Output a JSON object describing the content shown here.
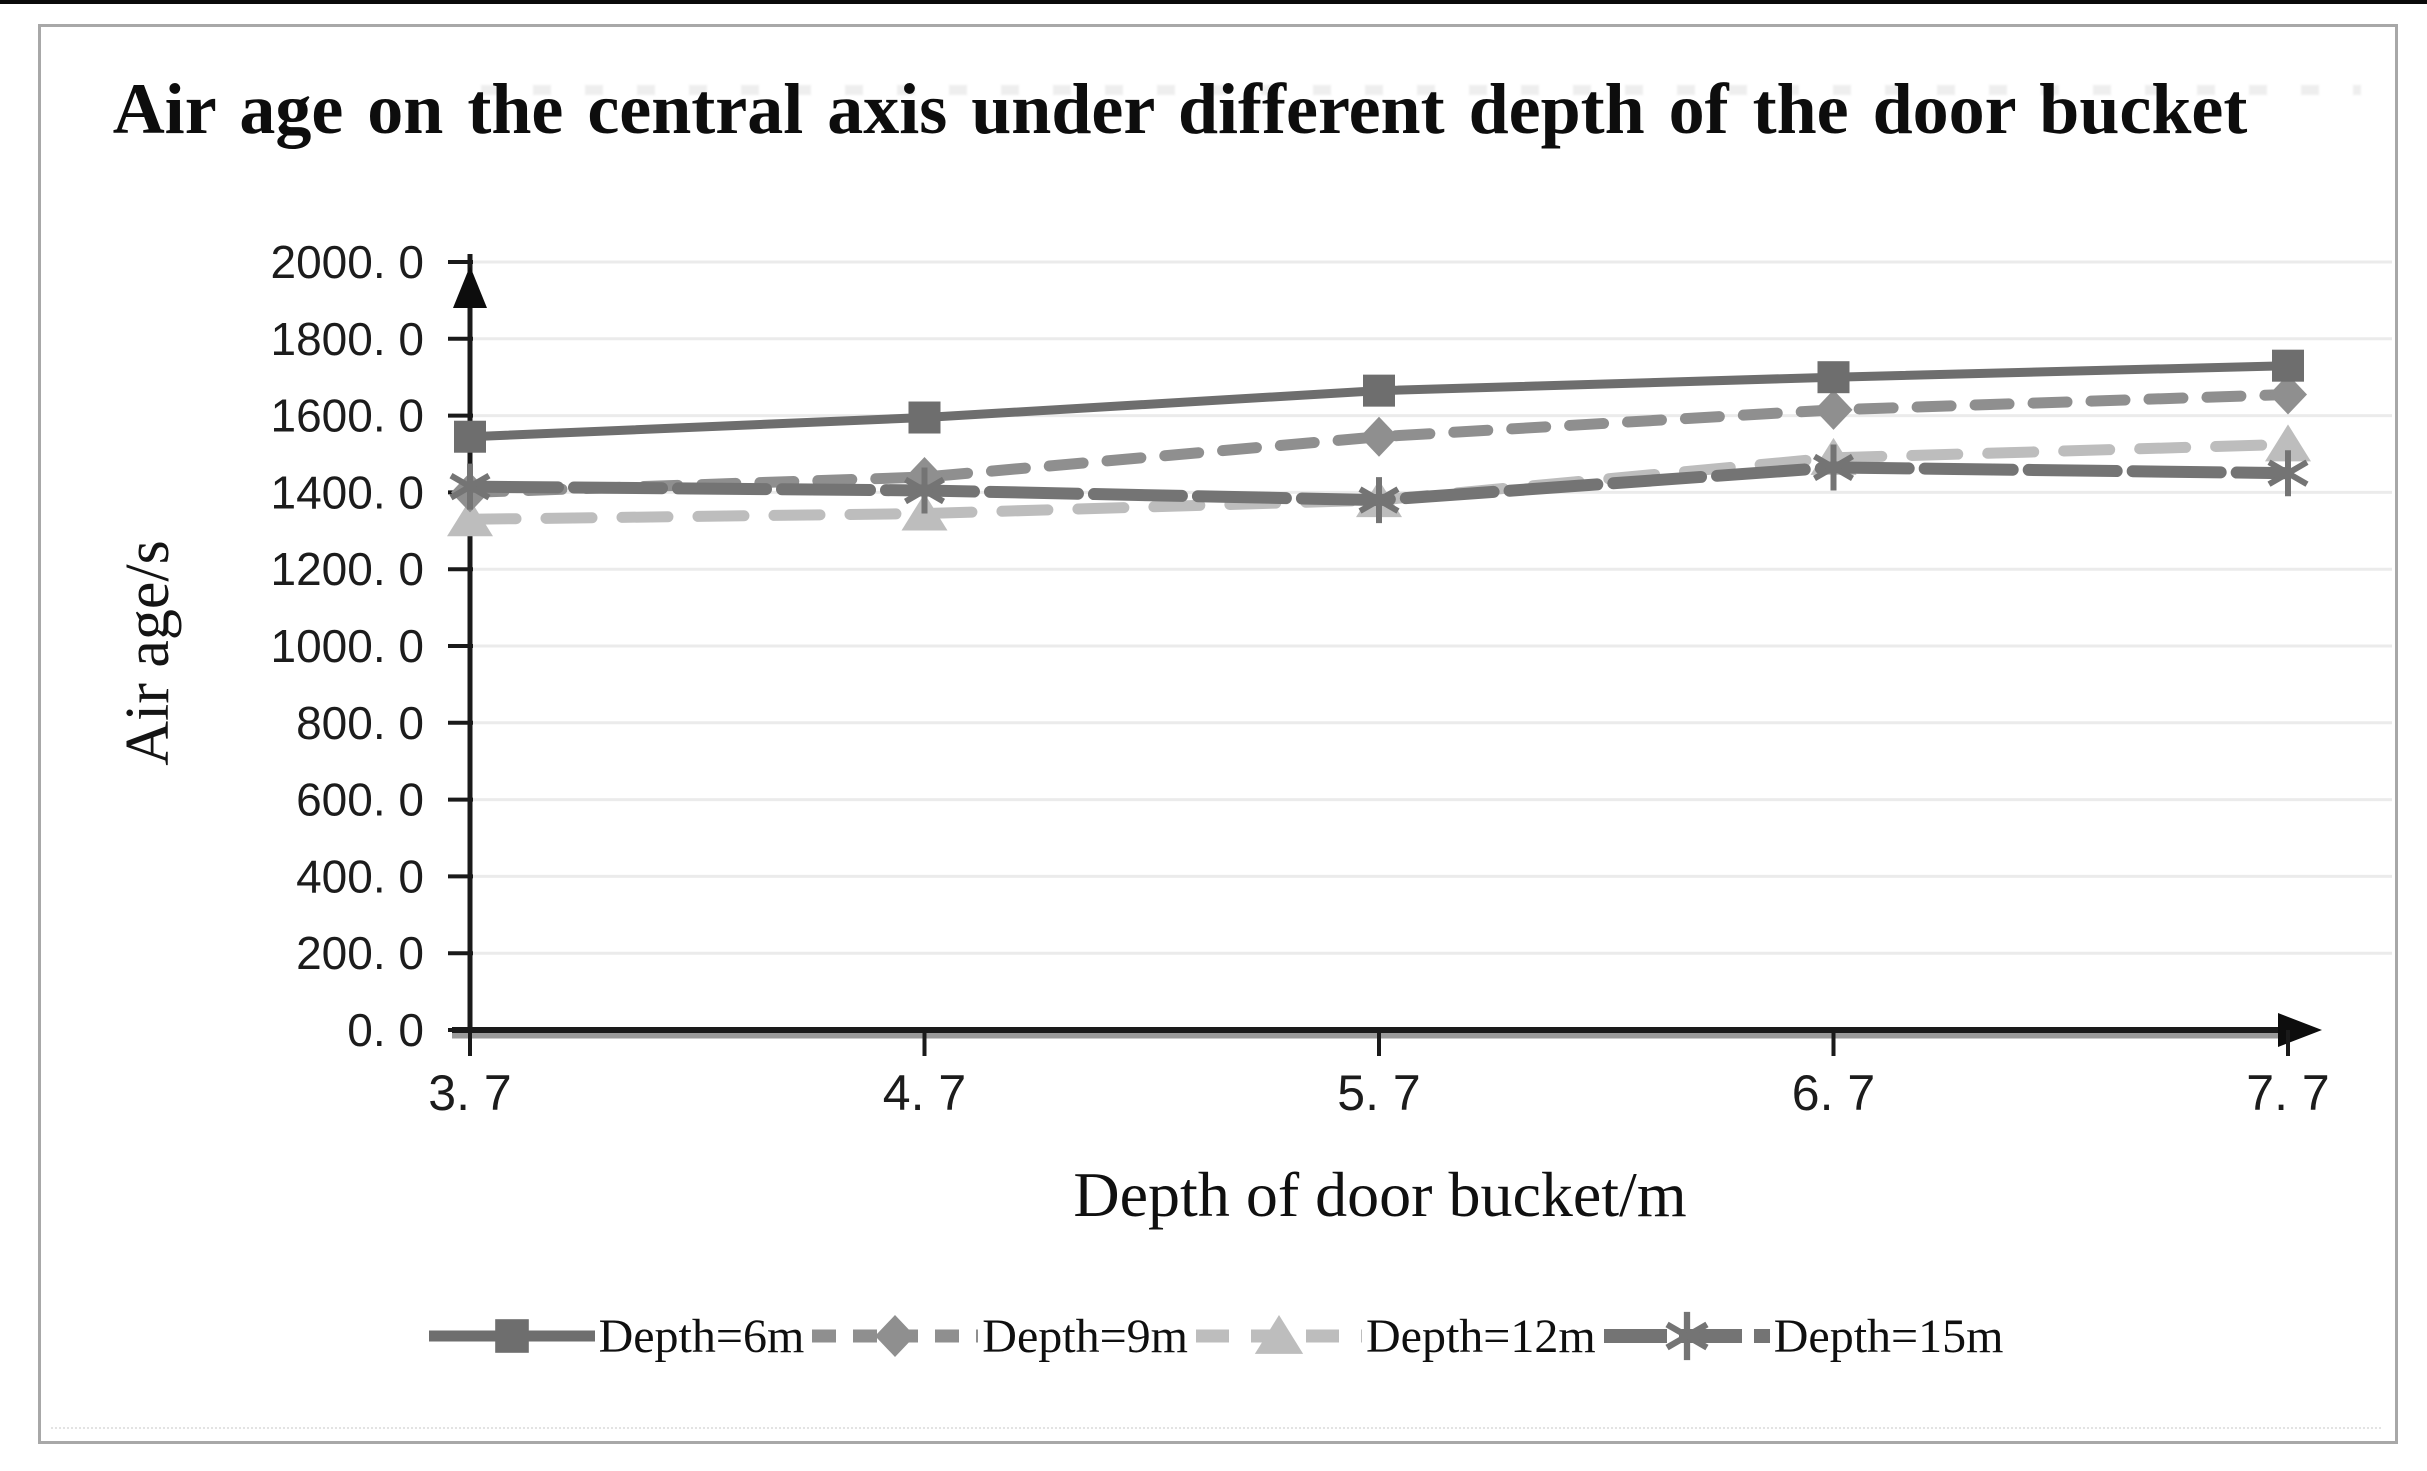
{
  "page": {
    "background": "#ffffff",
    "frame_border_color": "#a8a8a8",
    "axis_color": "#1a1a1a",
    "gridline_color": "#ebebeb"
  },
  "chart_data": {
    "type": "line",
    "title": "Air age on the central axis under different depth of the door bucket",
    "xlabel": "Depth of door bucket/m",
    "ylabel": "Air age/s",
    "x": [
      3.7,
      4.7,
      5.7,
      6.7,
      7.7
    ],
    "x_tick_labels": [
      "3. 7",
      "4. 7",
      "5. 7",
      "6. 7",
      "7. 7"
    ],
    "ylim": [
      0,
      2000
    ],
    "y_tick_step": 200,
    "y_tick_labels": [
      "0. 0",
      "200. 0",
      "400. 0",
      "600. 0",
      "800. 0",
      "1000. 0",
      "1200. 0",
      "1400. 0",
      "1600. 0",
      "1800. 0",
      "2000. 0"
    ],
    "grid": "horizontal",
    "legend_position": "bottom",
    "series": [
      {
        "name": "Depth=6m",
        "values": [
          1545,
          1595,
          1665,
          1700,
          1730
        ],
        "color": "#6e6e6e",
        "marker": "square",
        "line_style": "solid"
      },
      {
        "name": "Depth=9m",
        "values": [
          1400,
          1440,
          1545,
          1615,
          1655
        ],
        "color": "#8f8f8f",
        "marker": "diamond",
        "line_style": "dashed"
      },
      {
        "name": "Depth=12m",
        "values": [
          1330,
          1345,
          1380,
          1490,
          1525
        ],
        "color": "#bdbdbd",
        "marker": "triangle",
        "line_style": "dashed-light"
      },
      {
        "name": "Depth=15m",
        "values": [
          1415,
          1405,
          1380,
          1465,
          1450
        ],
        "color": "#747474",
        "marker": "asterisk",
        "line_style": "long-dash"
      }
    ]
  }
}
